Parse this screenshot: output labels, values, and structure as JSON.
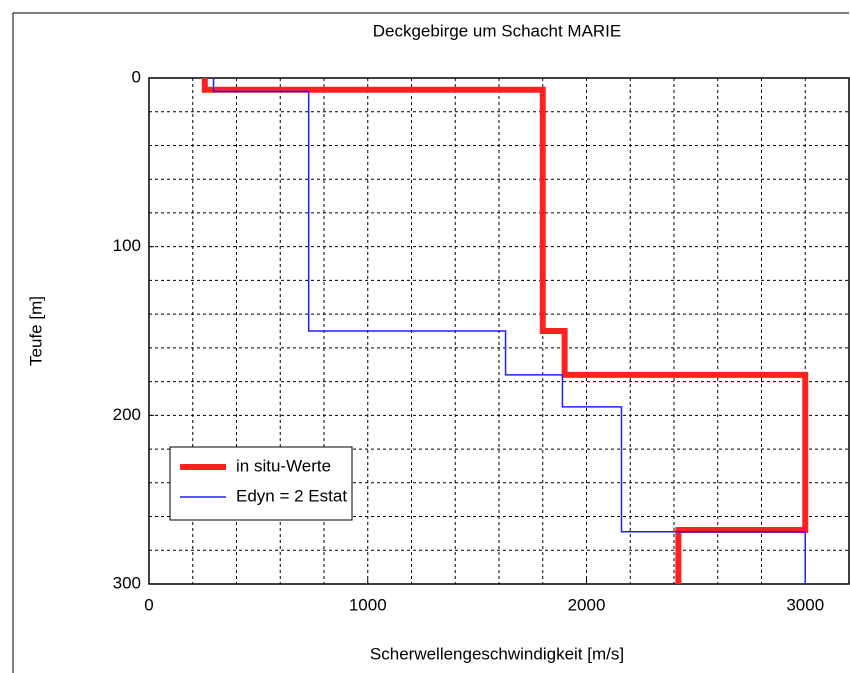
{
  "chart_data": {
    "type": "line",
    "title": "Deckgebirge um Schacht MARIE",
    "xlabel": "Scherwellengeschwindigkeit [m/s]",
    "ylabel": "Teufe [m]",
    "xlim": [
      0,
      3200
    ],
    "ylim": [
      0,
      300
    ],
    "y_inverted": true,
    "xticks": [
      0,
      1000,
      2000,
      3000
    ],
    "yticks": [
      0,
      100,
      200,
      300
    ],
    "xgrid": [
      200,
      400,
      600,
      800,
      1000,
      1200,
      1400,
      1600,
      1800,
      2000,
      2200,
      2400,
      2600,
      2800,
      3000
    ],
    "ygrid": [
      20,
      40,
      60,
      80,
      100,
      120,
      140,
      160,
      180,
      200,
      220,
      240,
      260,
      280
    ],
    "legend": "lower left",
    "series": [
      {
        "name": "in situ-Werte",
        "color": "#ff2020",
        "width": 6,
        "x": [
          255,
          255,
          1800,
          1800,
          1900,
          1900,
          3000,
          3000,
          2420,
          2420
        ],
        "values": [
          0,
          7,
          7,
          150,
          150,
          176,
          176,
          268,
          268,
          300
        ]
      },
      {
        "name": "Edyn = 2 Estat",
        "color": "#2020ff",
        "width": 1.5,
        "x": [
          295,
          295,
          730,
          730,
          1630,
          1630,
          1890,
          1890,
          2160,
          2160,
          3000,
          3000
        ],
        "values": [
          0,
          8,
          8,
          150,
          150,
          176,
          176,
          195,
          195,
          269,
          269,
          300
        ]
      }
    ]
  }
}
